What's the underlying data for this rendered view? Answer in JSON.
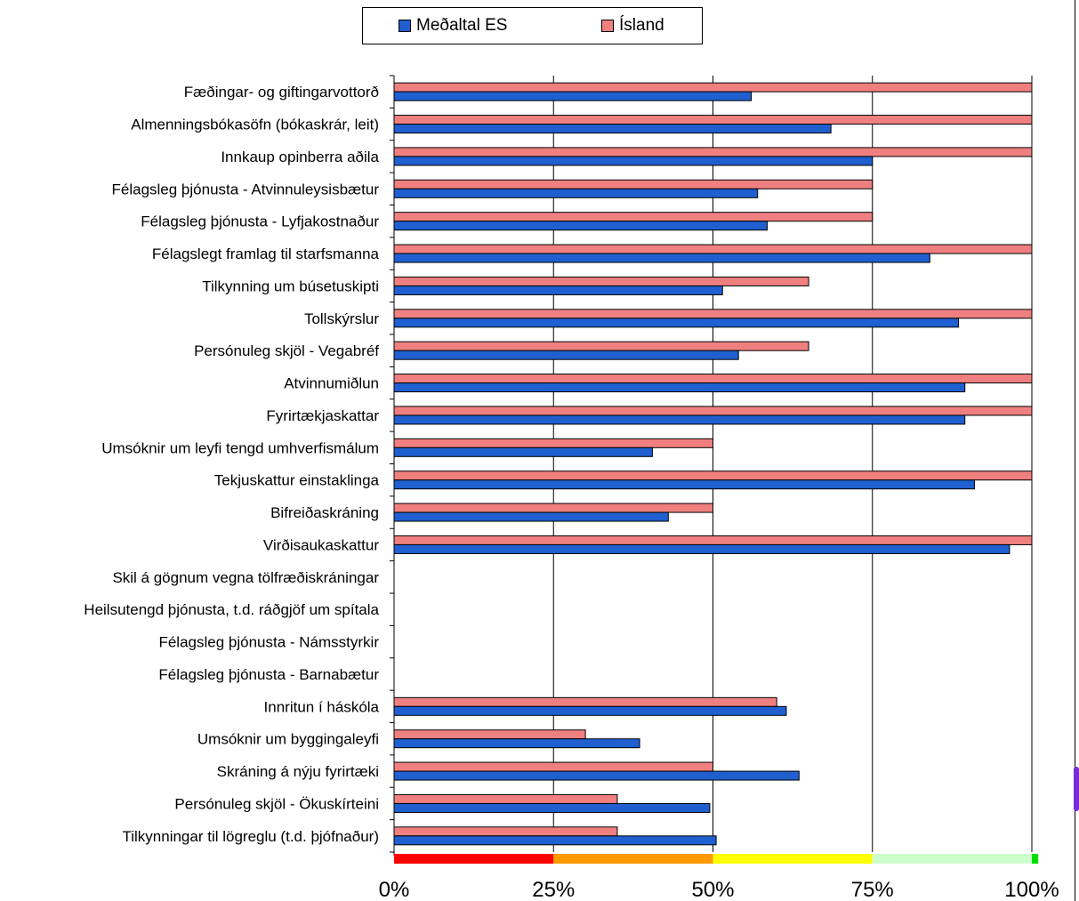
{
  "chart_data": {
    "type": "bar",
    "orientation": "horizontal",
    "categories": [
      "Fæðingar- og giftingarvottorð",
      "Almenningsbókasöfn (bókaskrár, leit)",
      "Innkaup opinberra aðila",
      "Félagsleg þjónusta - Atvinnuleysisbætur",
      "Félagsleg þjónusta - Lyfjakostnaður",
      "Félagslegt framlag til starfsmanna",
      "Tilkynning um búsetuskipti",
      "Tollskýrslur",
      "Persónuleg skjöl - Vegabréf",
      "Atvinnumiðlun",
      "Fyrirtækjaskattar",
      "Umsóknir um leyfi tengd umhverfismálum",
      "Tekjuskattur einstaklinga",
      "Bifreiðaskráning",
      "Virðisaukaskattur",
      "Skil á gögnum vegna tölfræðiskráningar",
      "Heilsutengd þjónusta, t.d. ráðgjöf um spítala",
      "Félagsleg þjónusta - Námsstyrkir",
      "Félagsleg þjónusta - Barnabætur",
      "Innritun í háskóla",
      "Umsóknir um byggingaleyfi",
      "Skráning á nýju fyrirtæki",
      "Persónuleg skjöl - Ökuskírteini",
      "Tilkynningar til lögreglu (t.d. þjófnaður)"
    ],
    "series": [
      {
        "name": "Meðaltal ES",
        "color": "#1f5fd0",
        "values": [
          56,
          68.5,
          75,
          57,
          58.5,
          84,
          51.5,
          88.5,
          54,
          89.5,
          89.5,
          40.5,
          91,
          43,
          96.5,
          null,
          null,
          null,
          null,
          61.5,
          38.5,
          63.5,
          49.5,
          50.5
        ]
      },
      {
        "name": "Ísland",
        "color": "#f08080",
        "values": [
          100,
          100,
          100,
          75,
          75,
          100,
          65,
          100,
          65,
          100,
          100,
          50,
          100,
          50,
          100,
          null,
          null,
          null,
          null,
          60,
          30,
          50,
          35,
          35
        ]
      }
    ],
    "xlim": [
      0,
      100
    ],
    "xticks": [
      "0%",
      "25%",
      "50%",
      "75%",
      "100%"
    ],
    "grid": true,
    "legend": "top-center",
    "color_scale": [
      {
        "from": 0,
        "to": 25,
        "color": "#ff0000"
      },
      {
        "from": 25,
        "to": 50,
        "color": "#ff9900"
      },
      {
        "from": 50,
        "to": 75,
        "color": "#ffff00"
      },
      {
        "from": 75,
        "to": 100,
        "color": "#ccffcc"
      },
      {
        "from": 100,
        "to": 101,
        "color": "#00dd00"
      }
    ]
  }
}
